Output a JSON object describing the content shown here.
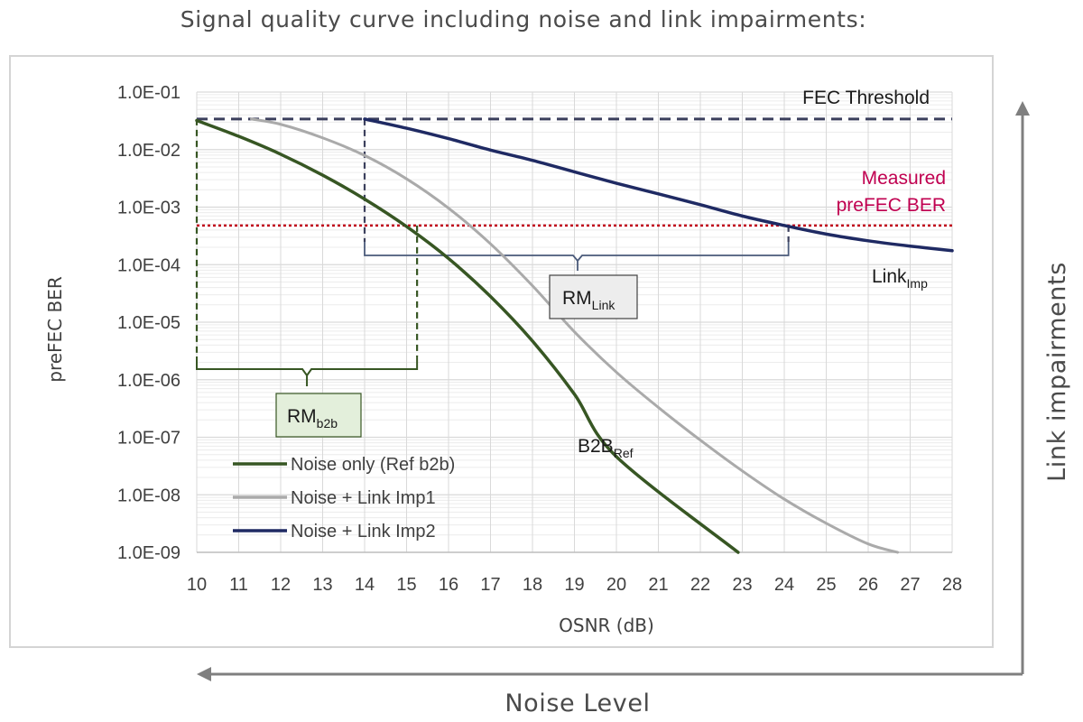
{
  "page": {
    "title": "Signal quality curve including noise and link impairments:",
    "bottom_arrow_label": "Noise Level",
    "right_arrow_label": "Link impairments"
  },
  "colors": {
    "b2b": "#375623",
    "imp1": "#aaaaaa",
    "imp2": "#1f2a63",
    "fec": "#3b3f5c",
    "measured": "#c0001a",
    "measured_text": "#c00050",
    "rm_b2b_box": "#e3efdb",
    "rm_link_box": "#ededed",
    "grid": "#d9d9d9",
    "arrows": "#7f7f7f"
  },
  "annotations": {
    "fec_threshold": "FEC Threshold",
    "measured_line1": "Measured",
    "measured_line2": "preFEC BER",
    "link_imp_main": "Link",
    "link_imp_sub": "Imp",
    "b2b_ref_main": "B2B",
    "b2b_ref_sub": "Ref",
    "rm_link_main": "RM",
    "rm_link_sub": "Link",
    "rm_b2b_main": "RM",
    "rm_b2b_sub": "b2b"
  },
  "chart_data": {
    "type": "line",
    "xlabel": "OSNR (dB)",
    "ylabel": "preFEC BER",
    "xlim": [
      10,
      28
    ],
    "ylim": [
      1e-09,
      0.1
    ],
    "yscale": "log",
    "grid": true,
    "legend_position": "lower-left",
    "x_ticks": [
      10,
      11,
      12,
      13,
      14,
      15,
      16,
      17,
      18,
      19,
      20,
      21,
      22,
      23,
      24,
      25,
      26,
      27,
      28
    ],
    "y_ticks": [
      {
        "value": 0.1,
        "label": "1.0E-01"
      },
      {
        "value": 0.01,
        "label": "1.0E-02"
      },
      {
        "value": 0.001,
        "label": "1.0E-03"
      },
      {
        "value": 0.0001,
        "label": "1.0E-04"
      },
      {
        "value": 1e-05,
        "label": "1.0E-05"
      },
      {
        "value": 1e-06,
        "label": "1.0E-06"
      },
      {
        "value": 1e-07,
        "label": "1.0E-07"
      },
      {
        "value": 1e-08,
        "label": "1.0E-08"
      },
      {
        "value": 1e-09,
        "label": "1.0E-09"
      }
    ],
    "fec_threshold_ber": 0.034,
    "measured_ber": 0.00048,
    "series": [
      {
        "name": "Noise only (Ref b2b)",
        "color_key": "b2b",
        "x": [
          10,
          11,
          12,
          13,
          14,
          15,
          16,
          17,
          18,
          19,
          20,
          21,
          22,
          23
        ],
        "y": [
          0.032,
          0.017,
          0.0083,
          0.0036,
          0.00138,
          0.00046,
          0.000128,
          2.8e-05,
          4.7e-06,
          5.6e-07,
          4.6e-08,
          2.2e-09,
          1e-09,
          1e-09
        ]
      },
      {
        "name": "Noise + Link Imp1",
        "color_key": "imp1",
        "x": [
          11.3,
          12,
          13,
          14,
          15,
          16,
          17,
          18,
          19,
          20,
          21,
          22,
          23,
          24,
          25,
          26,
          26.7
        ],
        "y": [
          0.034,
          0.0275,
          0.016,
          0.0079,
          0.0031,
          0.00096,
          0.00023,
          4.3e-05,
          6.8e-06,
          1.35e-06,
          3.3e-07,
          8.9e-08,
          2.6e-08,
          8.4e-09,
          3.2e-09,
          1.4e-09,
          1e-09
        ]
      },
      {
        "name": "Noise + Link Imp2",
        "color_key": "imp2",
        "x": [
          14,
          15,
          16,
          17,
          18,
          19,
          20,
          21,
          22,
          23,
          24,
          25,
          26,
          27,
          28
        ],
        "y": [
          0.034,
          0.0235,
          0.0155,
          0.0098,
          0.0065,
          0.0041,
          0.0026,
          0.0017,
          0.0011,
          0.0007,
          0.00048,
          0.00034,
          0.00026,
          0.00021,
          0.000175
        ]
      }
    ]
  }
}
